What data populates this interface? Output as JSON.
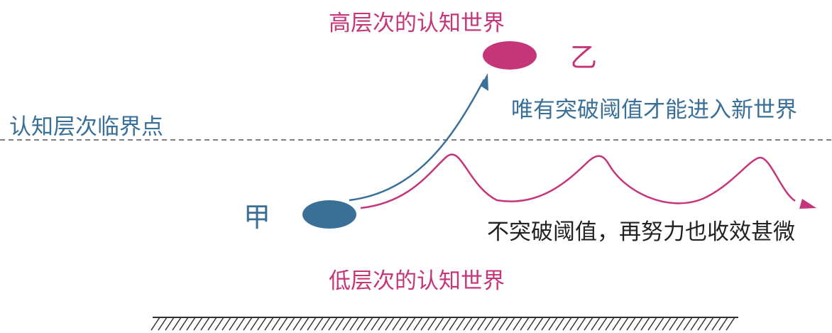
{
  "labels": {
    "high_world": "高层次的认知世界",
    "low_world": "低层次的认知世界",
    "threshold": "认知层次临界点",
    "break_through": "唯有突破阈值才能进入新世界",
    "no_break": "不突破阈值，再努力也收效甚微",
    "person_a": "甲",
    "person_b": "乙"
  },
  "colors": {
    "blue": "#3a6f98",
    "magenta": "#c5357a",
    "black": "#222222",
    "dashed_line": "#555555"
  }
}
